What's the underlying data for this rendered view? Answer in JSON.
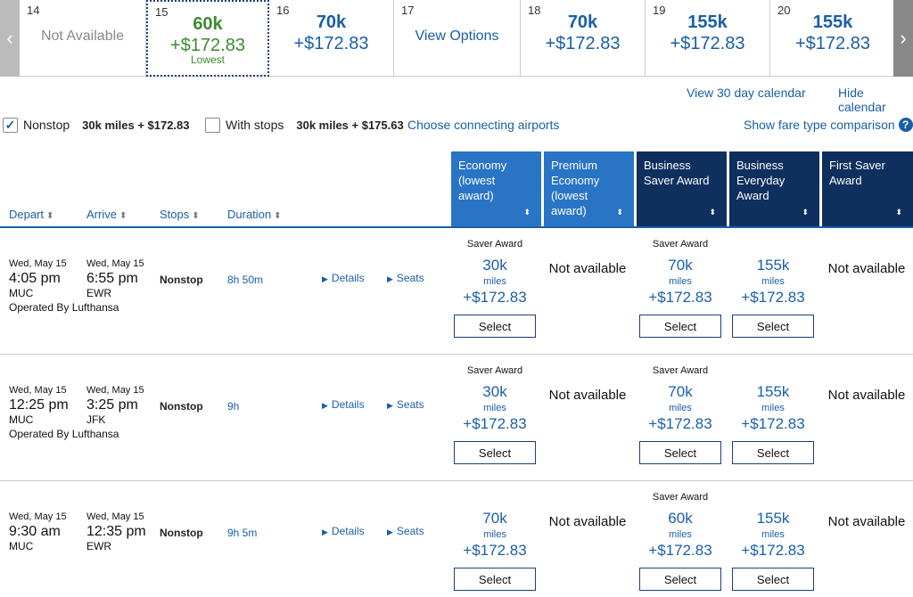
{
  "calendar": {
    "prev_label": "‹",
    "next_label": "›",
    "days": [
      {
        "day": "14",
        "text": "Not Available"
      },
      {
        "day": "15",
        "miles": "60k",
        "price": "+$172.83",
        "note": "Lowest"
      },
      {
        "day": "16",
        "miles": "70k",
        "price": "+$172.83"
      },
      {
        "day": "17",
        "text": "View Options"
      },
      {
        "day": "18",
        "miles": "70k",
        "price": "+$172.83"
      },
      {
        "day": "19",
        "miles": "155k",
        "price": "+$172.83"
      },
      {
        "day": "20",
        "miles": "155k",
        "price": "+$172.83"
      }
    ]
  },
  "links": {
    "view_30_day": "View 30 day calendar",
    "hide_calendar": "Hide calendar",
    "connecting": "Choose connecting airports",
    "fare_comparison": "Show fare type comparison",
    "help": "?"
  },
  "filters": {
    "nonstop": {
      "label": "Nonstop",
      "summary": "30k miles + $172.83",
      "check": "✓"
    },
    "with_stops": {
      "label": "With stops",
      "summary": "30k miles + $175.63",
      "check": ""
    }
  },
  "columns": {
    "depart": "Depart",
    "arrive": "Arrive",
    "stops": "Stops",
    "duration": "Duration",
    "sort_glyph": "⬍",
    "caret": "⬍",
    "cabins": [
      {
        "l1": "Economy",
        "l2": "(lowest",
        "l3": "award)",
        "l4": ""
      },
      {
        "l1": "Premium",
        "l2": "Economy",
        "l3": "(lowest",
        "l4": "award)"
      },
      {
        "l1": "Business",
        "l2": "Saver Award",
        "l3": "",
        "l4": ""
      },
      {
        "l1": "Business",
        "l2": "Everyday",
        "l3": "Award",
        "l4": ""
      },
      {
        "l1": "First Saver",
        "l2": "Award",
        "l3": "",
        "l4": ""
      }
    ]
  },
  "common": {
    "select": "Select",
    "not_available": "Not available",
    "miles": "miles",
    "saver": "Saver Award",
    "details": "Details",
    "seats": "Seats",
    "tri": "▶"
  },
  "flights": [
    {
      "dep_date": "Wed, May 15",
      "dep_time": "4:05 pm",
      "dep_code": "MUC",
      "arr_date": "Wed, May 15",
      "arr_time": "6:55 pm",
      "arr_code": "EWR",
      "operated": "Operated By Lufthansa",
      "stops": "Nonstop",
      "duration": "8h 50m",
      "econ": {
        "miles": "30k",
        "price": "+$172.83"
      },
      "bsaver": {
        "miles": "70k",
        "price": "+$172.83"
      },
      "bevery": {
        "miles": "155k",
        "price": "+$172.83"
      }
    },
    {
      "dep_date": "Wed, May 15",
      "dep_time": "12:25 pm",
      "dep_code": "MUC",
      "arr_date": "Wed, May 15",
      "arr_time": "3:25 pm",
      "arr_code": "JFK",
      "operated": "Operated By Lufthansa",
      "stops": "Nonstop",
      "duration": "9h",
      "econ": {
        "miles": "30k",
        "price": "+$172.83"
      },
      "bsaver": {
        "miles": "70k",
        "price": "+$172.83"
      },
      "bevery": {
        "miles": "155k",
        "price": "+$172.83"
      }
    },
    {
      "dep_date": "Wed, May 15",
      "dep_time": "9:30 am",
      "dep_code": "MUC",
      "arr_date": "Wed, May 15",
      "arr_time": "12:35 pm",
      "arr_code": "EWR",
      "operated": "",
      "stops": "Nonstop",
      "duration": "9h 5m",
      "econ": {
        "miles": "70k",
        "price": "+$172.83"
      },
      "bsaver": {
        "miles": "60k",
        "price": "+$172.83"
      },
      "bevery": {
        "miles": "155k",
        "price": "+$172.83"
      }
    }
  ]
}
